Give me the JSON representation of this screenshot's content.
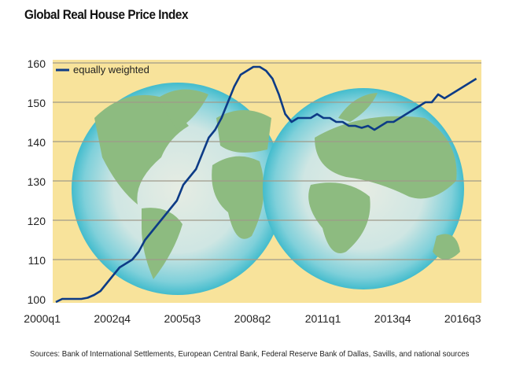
{
  "title": "Global Real House Price Index",
  "source": "Sources: Bank of International Settlements, European Central Bank, Federal Reserve Bank of Dallas, Savills, and national sources",
  "colors": {
    "background": "#f8e39b",
    "line": "#0d3b86",
    "grid": "#a09a8a",
    "globe_edge": "#4cbfd0",
    "land": "#8dbb80"
  },
  "chart_data": {
    "type": "line",
    "title": "Global Real House Price Index",
    "grid": true,
    "legend": "top-left",
    "ylim": [
      100,
      160
    ],
    "yticks": [
      100,
      110,
      120,
      130,
      140,
      150,
      160
    ],
    "xticks": [
      "2000q1",
      "2002q4",
      "2005q3",
      "2008q2",
      "2011q1",
      "2013q4",
      "2016q3"
    ],
    "x_start": "2000q1",
    "x_end": "2016q3",
    "series": [
      {
        "name": "equally weighted",
        "values": [
          99.2,
          100,
          100,
          100,
          100,
          100.3,
          101,
          102,
          104,
          106,
          108,
          109,
          110,
          112,
          115,
          117,
          119,
          121,
          123,
          125,
          129,
          131,
          133,
          137,
          141,
          143,
          146,
          150,
          154,
          157,
          158,
          159,
          159,
          158,
          156,
          152,
          147,
          145,
          146,
          146,
          146,
          147,
          146,
          146,
          145,
          145,
          144,
          144,
          143.5,
          144,
          143,
          144,
          145,
          145,
          146,
          147,
          148,
          149,
          150,
          150,
          152,
          151,
          152,
          153,
          154,
          155,
          156
        ]
      }
    ]
  }
}
